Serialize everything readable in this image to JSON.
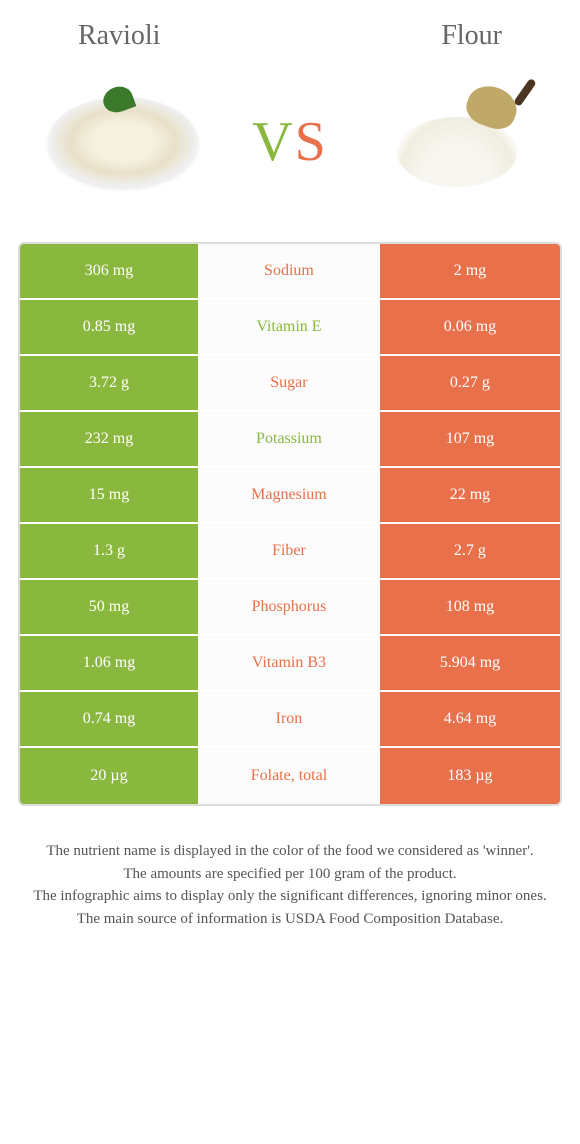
{
  "header": {
    "left_title": "Ravioli",
    "right_title": "Flour"
  },
  "vs": {
    "v": "V",
    "s": "S"
  },
  "colors": {
    "left": "#8ab83e",
    "right": "#e8704a",
    "mid_bg": "#fcfcfc",
    "border": "#dddddd"
  },
  "rows": [
    {
      "left": "306 mg",
      "label": "Sodium",
      "right": "2 mg",
      "winner": "right"
    },
    {
      "left": "0.85 mg",
      "label": "Vitamin E",
      "right": "0.06 mg",
      "winner": "left"
    },
    {
      "left": "3.72 g",
      "label": "Sugar",
      "right": "0.27 g",
      "winner": "right"
    },
    {
      "left": "232 mg",
      "label": "Potassium",
      "right": "107 mg",
      "winner": "left"
    },
    {
      "left": "15 mg",
      "label": "Magnesium",
      "right": "22 mg",
      "winner": "right"
    },
    {
      "left": "1.3 g",
      "label": "Fiber",
      "right": "2.7 g",
      "winner": "right"
    },
    {
      "left": "50 mg",
      "label": "Phosphorus",
      "right": "108 mg",
      "winner": "right"
    },
    {
      "left": "1.06 mg",
      "label": "Vitamin B3",
      "right": "5.904 mg",
      "winner": "right"
    },
    {
      "left": "0.74 mg",
      "label": "Iron",
      "right": "4.64 mg",
      "winner": "right"
    },
    {
      "left": "20 µg",
      "label": "Folate, total",
      "right": "183 µg",
      "winner": "right"
    }
  ],
  "footer": {
    "line1": "The nutrient name is displayed in the color of the food we considered as 'winner'.",
    "line2": "The amounts are specified per 100 gram of the product.",
    "line3": "The infographic aims to display only the significant differences, ignoring minor ones.",
    "line4": "The main source of information is USDA Food Composition Database."
  }
}
